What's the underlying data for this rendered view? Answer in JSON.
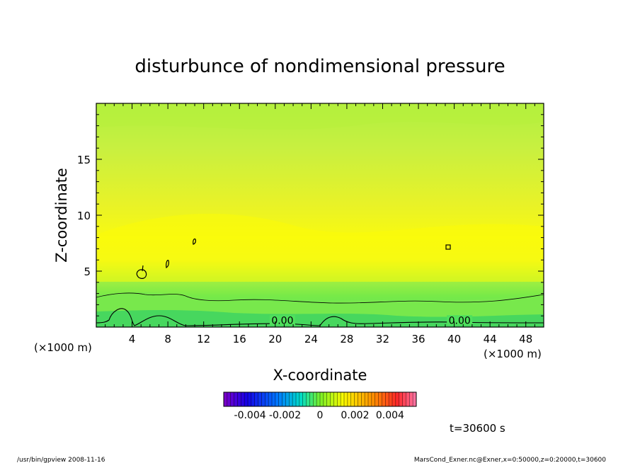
{
  "chart_data": {
    "type": "heatmap",
    "title": "disturbunce of nondimensional pressure",
    "xlabel": "X-coordinate",
    "ylabel": "Z-coordinate",
    "x_unit_left": "(×1000 m)",
    "x_unit_right": "(×1000 m)",
    "xlim": [
      0,
      50
    ],
    "ylim": [
      0,
      20
    ],
    "xticks": [
      4,
      8,
      12,
      16,
      20,
      24,
      28,
      32,
      36,
      40,
      44,
      48
    ],
    "xtick_labels": [
      "4",
      "8",
      "12",
      "16",
      "20",
      "24",
      "28",
      "32",
      "36",
      "40",
      "44",
      "48"
    ],
    "yticks": [
      5,
      10,
      15
    ],
    "ytick_labels": [
      "5",
      "10",
      "15"
    ],
    "contour_labels": [
      {
        "text": "0.00",
        "x": 20.8,
        "z": 0.3
      },
      {
        "text": "0.00",
        "x": 40.6,
        "z": 0.3
      }
    ],
    "colorbar": {
      "min": -0.0055,
      "max": 0.0055,
      "tick_values": [
        -0.004,
        -0.002,
        0,
        0.002,
        0.004
      ],
      "tick_labels": [
        "-0.004",
        "-0.002",
        "0",
        "0.002",
        "0.004"
      ]
    },
    "time_label": "t=30600 s"
  },
  "footer": {
    "left": "/usr/bin/gpview   2008-11-16",
    "right": "MarsCond_Exner.nc@Exner,x=0:50000,z=0:20000,t=30600"
  }
}
